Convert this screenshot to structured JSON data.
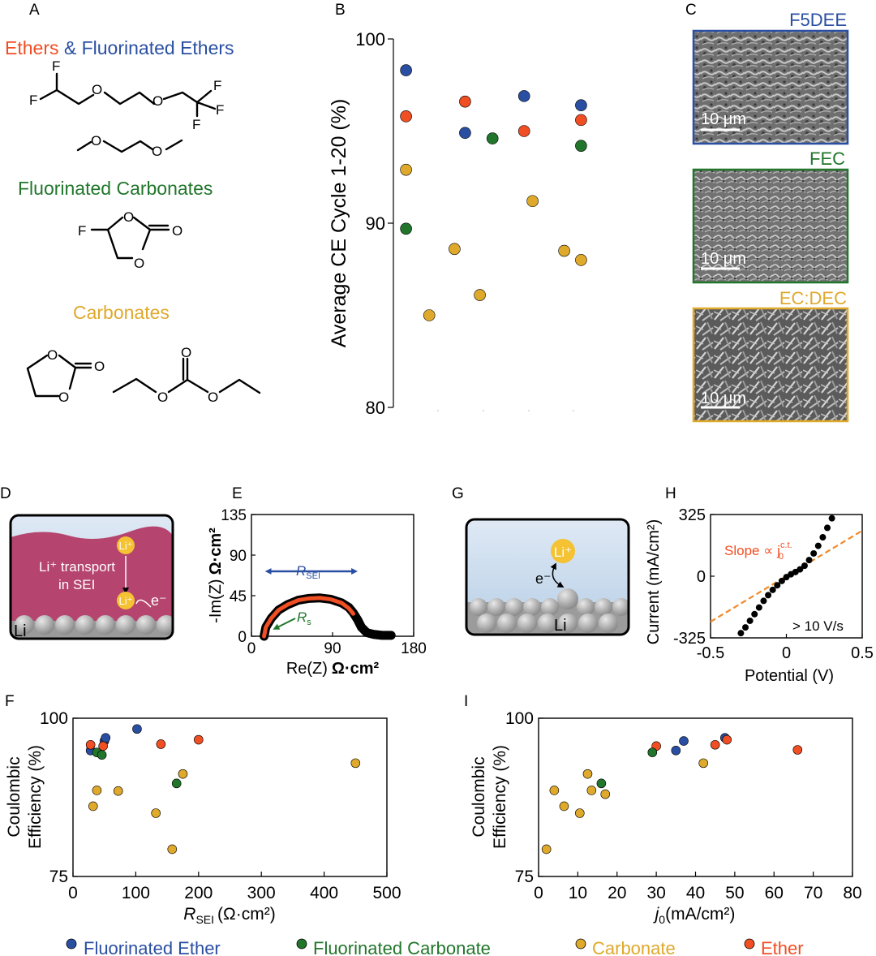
{
  "colors": {
    "ether": "#F04E23",
    "fluorinated_ether": "#2A4FA2",
    "fluorinated_carbonate": "#21762B",
    "carbonate": "#DFA92C",
    "sei_pink": "#B5446E",
    "black": "#000000",
    "li_yellow": "#F4C232"
  },
  "panel_letters": {
    "A": "A",
    "B": "B",
    "C": "C",
    "D": "D",
    "E": "E",
    "F": "F",
    "G": "G",
    "H": "H",
    "I": "I"
  },
  "panelA": {
    "title_ethers": "Ethers",
    "title_amp": " & Fluorinated Ethers",
    "title_fluorinated_carbonates": "Fluorinated Carbonates",
    "title_carbonates": "Carbonates",
    "atom_F": "F",
    "atom_O": "O"
  },
  "panelC": {
    "label_1": "F5DEE",
    "label_2": "FEC",
    "label_3": "EC:DEC",
    "scale_bar": "10 μm"
  },
  "panelD": {
    "li_ion": "Li⁺",
    "transport_line1": "Li⁺ transport",
    "transport_line2": "in SEI",
    "electron": "e⁻",
    "metal": "Li"
  },
  "panelE_labels": {
    "r_sei": "R",
    "r_sei_sub": "SEI",
    "r_s": "R",
    "r_s_sub": "s"
  },
  "panelG": {
    "li_ion": "Li⁺",
    "electron": "e⁻",
    "metal": "Li"
  },
  "panelH_labels": {
    "slope_text": "Slope ∝ j",
    "slope_sub": "0",
    "slope_sup": "c.t.",
    "rate_text": "> 10 V/s"
  },
  "legend": [
    {
      "label": "Fluorinated Ether",
      "color": "#2A4FA2"
    },
    {
      "label": "Fluorinated Carbonate",
      "color": "#21762B"
    },
    {
      "label": "Carbonate",
      "color": "#DFA92C"
    },
    {
      "label": "Ether",
      "color": "#F04E23"
    }
  ],
  "chart_data": [
    {
      "panel": "B",
      "type": "scatter",
      "ylabel": "Average CE Cycle 1-20 (%)",
      "ylim": [
        80,
        100
      ],
      "yticks": [
        80,
        90,
        100
      ],
      "xlim": [
        0,
        1
      ],
      "grid": false,
      "series": [
        {
          "name": "Fluorinated Ether",
          "color": "#2A4FA2",
          "points": [
            [
              0.06,
              98.3
            ],
            [
              0.34,
              94.9
            ],
            [
              0.62,
              96.9
            ],
            [
              0.89,
              96.4
            ]
          ]
        },
        {
          "name": "Ether",
          "color": "#F04E23",
          "points": [
            [
              0.06,
              95.8
            ],
            [
              0.34,
              96.6
            ],
            [
              0.62,
              95.0
            ],
            [
              0.89,
              95.6
            ]
          ]
        },
        {
          "name": "Fluorinated Carbonate",
          "color": "#21762B",
          "points": [
            [
              0.06,
              89.7
            ],
            [
              0.47,
              94.6
            ],
            [
              0.89,
              94.2
            ]
          ]
        },
        {
          "name": "Carbonate",
          "color": "#DFA92C",
          "points": [
            [
              0.06,
              92.9
            ],
            [
              0.17,
              85.0
            ],
            [
              0.29,
              88.6
            ],
            [
              0.41,
              86.1
            ],
            [
              0.66,
              91.2
            ],
            [
              0.81,
              88.5
            ],
            [
              0.89,
              88.0
            ]
          ]
        }
      ]
    },
    {
      "panel": "E",
      "type": "line",
      "xlabel": "Re(Z)",
      "xunit": "Ω·cm²",
      "ylabel": "-Im(Z)",
      "yunit": "Ω·cm²",
      "xlim": [
        0,
        180
      ],
      "ylim": [
        0,
        135
      ],
      "xticks": [
        0,
        90,
        180
      ],
      "yticks": [
        0,
        45,
        90,
        135
      ],
      "series": [
        {
          "name": "measured",
          "color": "#000000",
          "points": [
            [
              14,
              0
            ],
            [
              16,
              10
            ],
            [
              22,
              20
            ],
            [
              30,
              29
            ],
            [
              40,
              35
            ],
            [
              52,
              40
            ],
            [
              64,
              42
            ],
            [
              76,
              42.5
            ],
            [
              88,
              41
            ],
            [
              100,
              37
            ],
            [
              108,
              32
            ],
            [
              113,
              26
            ],
            [
              118,
              18
            ],
            [
              122,
              10
            ],
            [
              128,
              4
            ],
            [
              136,
              2
            ],
            [
              145,
              1
            ],
            [
              155,
              1
            ]
          ]
        },
        {
          "name": "fit",
          "color": "#F04E23",
          "points": [
            [
              14,
              0
            ],
            [
              16,
              10
            ],
            [
              22,
              20
            ],
            [
              30,
              29
            ],
            [
              40,
              35
            ],
            [
              52,
              40
            ],
            [
              64,
              42
            ],
            [
              76,
              42.5
            ],
            [
              88,
              41
            ],
            [
              100,
              37
            ],
            [
              108,
              31
            ],
            [
              113,
              25
            ]
          ]
        }
      ],
      "annotations": {
        "R_SEI_arrow_x": [
          15,
          118
        ],
        "R_SEI_arrow_y": 72
      }
    },
    {
      "panel": "H",
      "type": "scatter",
      "xlabel": "Potential (V)",
      "ylabel": "Current (mA/cm²)",
      "xlim": [
        -0.5,
        0.5
      ],
      "ylim": [
        -325,
        325
      ],
      "xticks": [
        -0.5,
        0,
        0.5
      ],
      "yticks": [
        -325,
        0,
        325
      ],
      "series": [
        {
          "name": "data",
          "color": "#000000",
          "points": [
            [
              -0.3,
              -300
            ],
            [
              -0.27,
              -270
            ],
            [
              -0.24,
              -235
            ],
            [
              -0.21,
              -200
            ],
            [
              -0.18,
              -165
            ],
            [
              -0.15,
              -130
            ],
            [
              -0.12,
              -100
            ],
            [
              -0.09,
              -72
            ],
            [
              -0.06,
              -48
            ],
            [
              -0.03,
              -25
            ],
            [
              0.0,
              -5
            ],
            [
              0.03,
              10
            ],
            [
              0.06,
              22
            ],
            [
              0.09,
              36
            ],
            [
              0.12,
              55
            ],
            [
              0.15,
              85
            ],
            [
              0.18,
              120
            ],
            [
              0.21,
              160
            ],
            [
              0.24,
              205
            ],
            [
              0.27,
              255
            ],
            [
              0.3,
              305
            ]
          ]
        },
        {
          "name": "slope",
          "color": "#F08A2C",
          "points": [
            [
              -0.5,
              -240
            ],
            [
              0.5,
              240
            ]
          ]
        }
      ]
    },
    {
      "panel": "F",
      "type": "scatter",
      "xlabel": "R",
      "xlabel_sub": "SEI",
      "xunit": "(Ω·cm²)",
      "ylabel_line1": "Coulombic",
      "ylabel_line2": "Efficiency (%)",
      "xlim": [
        0,
        500
      ],
      "ylim": [
        75,
        100
      ],
      "xticks": [
        0,
        100,
        200,
        300,
        400,
        500
      ],
      "yticks": [
        75,
        100
      ],
      "series": [
        {
          "name": "Fluorinated Ether",
          "color": "#2A4FA2",
          "points": [
            [
              28,
              94.9
            ],
            [
              50,
              96.4
            ],
            [
              52,
              96.9
            ],
            [
              102,
              98.3
            ]
          ]
        },
        {
          "name": "Ether",
          "color": "#F04E23",
          "points": [
            [
              28,
              95.8
            ],
            [
              48,
              95.6
            ],
            [
              140,
              95.9
            ],
            [
              200,
              96.6
            ]
          ]
        },
        {
          "name": "Fluorinated Carbonate",
          "color": "#21762B",
          "points": [
            [
              38,
              94.6
            ],
            [
              46,
              94.2
            ],
            [
              165,
              89.7
            ]
          ]
        },
        {
          "name": "Carbonate",
          "color": "#DFA92C",
          "points": [
            [
              32,
              86.1
            ],
            [
              38,
              88.6
            ],
            [
              72,
              88.5
            ],
            [
              132,
              85.0
            ],
            [
              158,
              79.3
            ],
            [
              175,
              91.2
            ],
            [
              450,
              92.9
            ]
          ]
        }
      ]
    },
    {
      "panel": "I",
      "type": "scatter",
      "xlabel": "j",
      "xlabel_sub": "0",
      "xunit": "(mA/cm²)",
      "ylabel_line1": "Coulombic",
      "ylabel_line2": "Efficiency (%)",
      "xlim": [
        0,
        80
      ],
      "ylim": [
        75,
        100
      ],
      "xticks": [
        0,
        10,
        20,
        30,
        40,
        50,
        60,
        70,
        80
      ],
      "yticks": [
        75,
        100
      ],
      "series": [
        {
          "name": "Fluorinated Ether",
          "color": "#2A4FA2",
          "points": [
            [
              35,
              94.9
            ],
            [
              37,
              96.4
            ],
            [
              47.5,
              96.9
            ]
          ]
        },
        {
          "name": "Ether",
          "color": "#F04E23",
          "points": [
            [
              30,
              95.6
            ],
            [
              45,
              95.8
            ],
            [
              48,
              96.6
            ],
            [
              66,
              95.0
            ]
          ]
        },
        {
          "name": "Fluorinated Carbonate",
          "color": "#21762B",
          "points": [
            [
              29,
              94.6
            ],
            [
              16,
              89.7
            ]
          ]
        },
        {
          "name": "Carbonate",
          "color": "#DFA92C",
          "points": [
            [
              2,
              79.3
            ],
            [
              4,
              88.6
            ],
            [
              6.5,
              86.1
            ],
            [
              10.5,
              85.0
            ],
            [
              12.5,
              91.2
            ],
            [
              13.5,
              88.6
            ],
            [
              17,
              88.0
            ],
            [
              42,
              92.9
            ]
          ]
        }
      ]
    }
  ]
}
